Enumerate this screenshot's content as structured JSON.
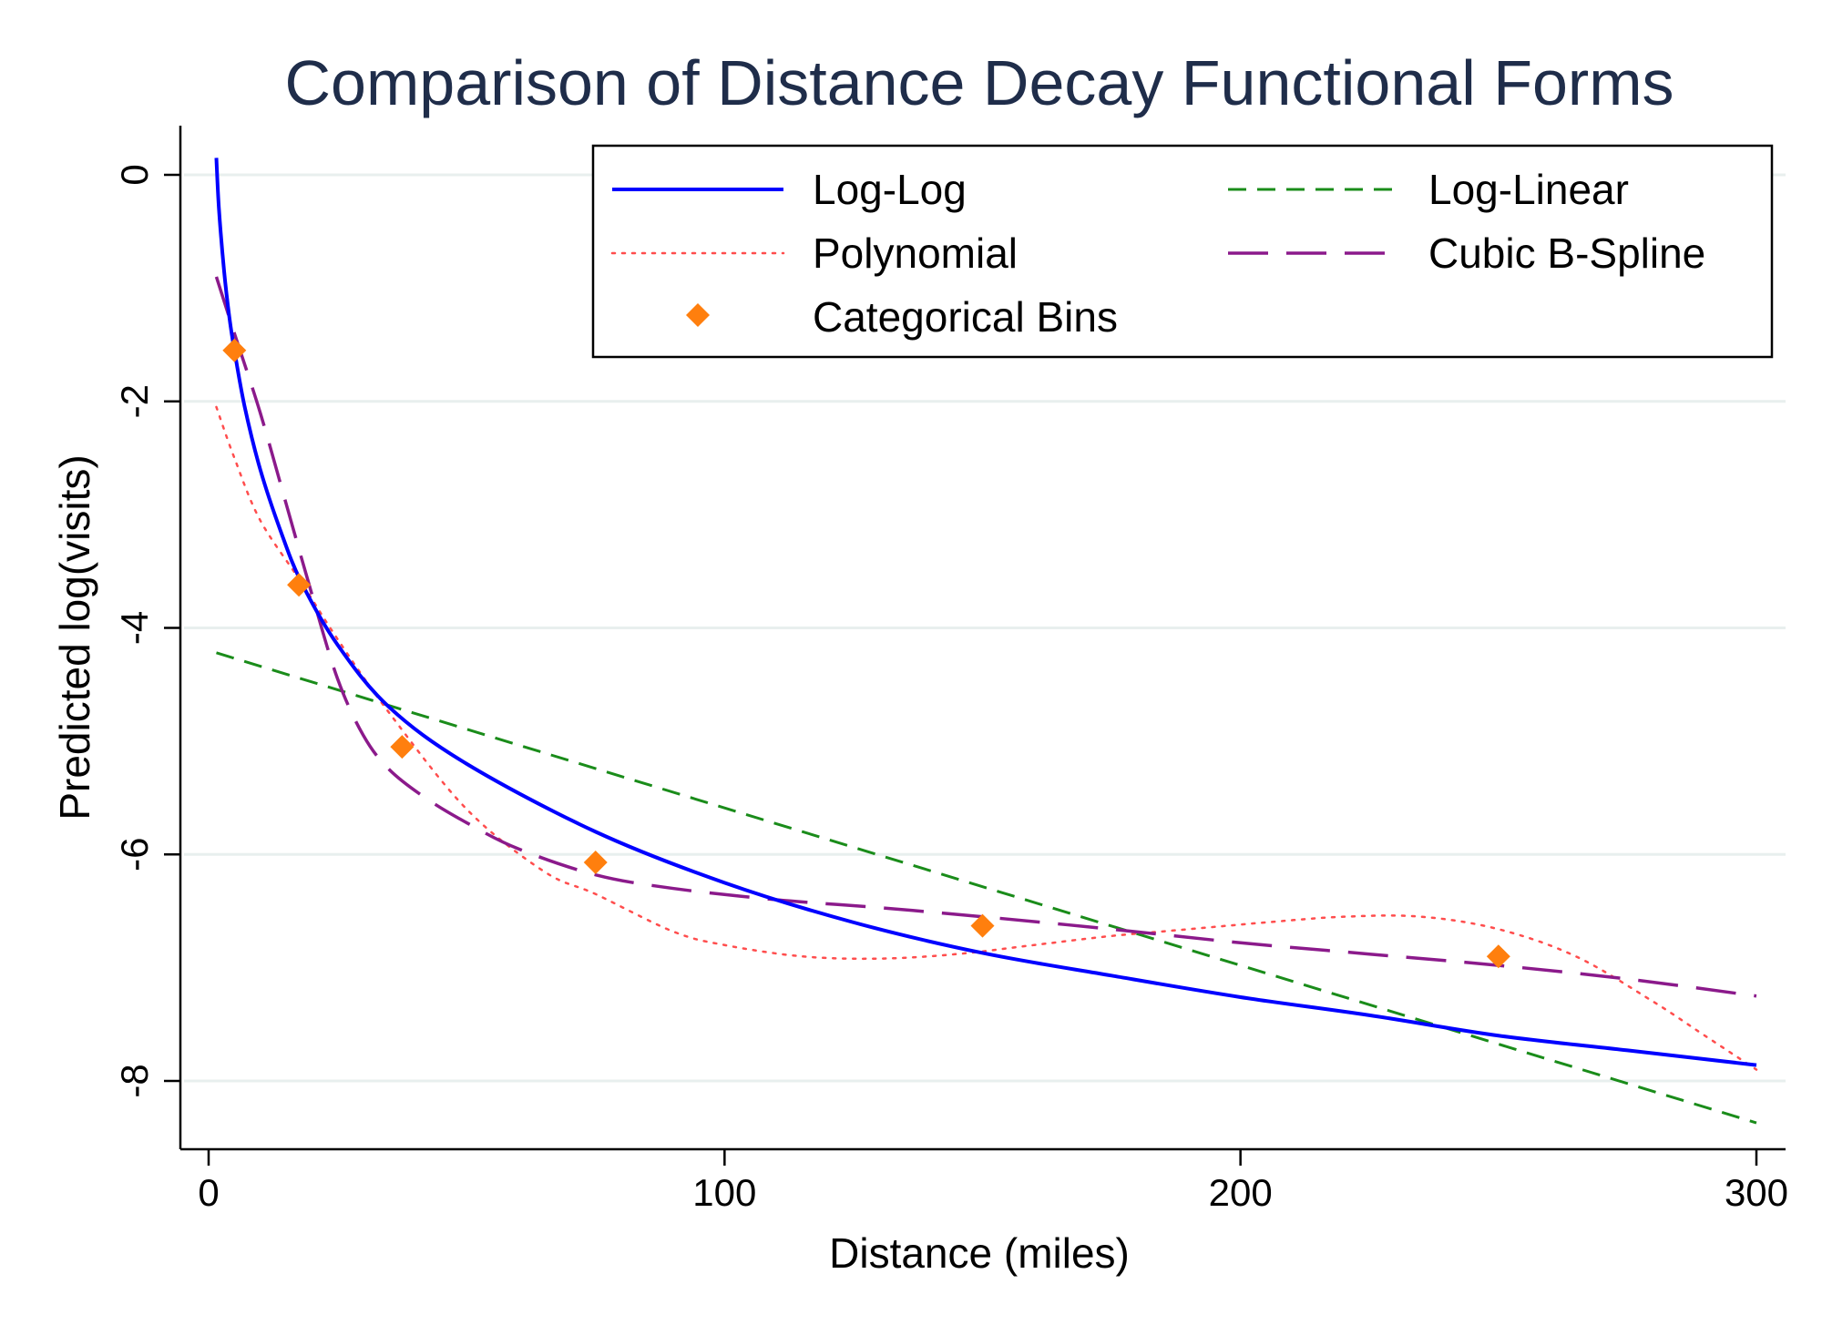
{
  "chart_data": {
    "type": "line",
    "title": "Comparison of Distance Decay Functional Forms",
    "xlabel": "Distance (miles)",
    "ylabel": "Predicted log(visits)",
    "xlim": [
      0,
      305
    ],
    "ylim": [
      -8.6,
      0.4
    ],
    "x_ticks": [
      0,
      100,
      200,
      300
    ],
    "x_tick_labels": [
      "0",
      "100",
      "200",
      "300"
    ],
    "y_ticks": [
      0,
      -2,
      -4,
      -6,
      -8
    ],
    "y_tick_labels": [
      "0",
      "-2",
      "-4",
      "-6",
      "-8"
    ],
    "grid": "horizontal",
    "legend": "top-right",
    "series": [
      {
        "name": "Log-Log",
        "kind": "line",
        "style": "solid",
        "color": "#0000ff",
        "points": [
          [
            1.5,
            0.15
          ],
          [
            2,
            -0.3
          ],
          [
            3,
            -0.85
          ],
          [
            4,
            -1.25
          ],
          [
            5,
            -1.55
          ],
          [
            7,
            -2.05
          ],
          [
            10,
            -2.6
          ],
          [
            14,
            -3.15
          ],
          [
            18,
            -3.6
          ],
          [
            25,
            -4.15
          ],
          [
            35,
            -4.7
          ],
          [
            50,
            -5.2
          ],
          [
            75,
            -5.8
          ],
          [
            100,
            -6.25
          ],
          [
            125,
            -6.6
          ],
          [
            150,
            -6.87
          ],
          [
            175,
            -7.07
          ],
          [
            200,
            -7.26
          ],
          [
            225,
            -7.42
          ],
          [
            250,
            -7.6
          ],
          [
            275,
            -7.73
          ],
          [
            300,
            -7.86
          ]
        ]
      },
      {
        "name": "Log-Linear",
        "kind": "line",
        "style": "dashed",
        "color": "#1a8c1a",
        "points": [
          [
            1.5,
            -4.22
          ],
          [
            300,
            -8.37
          ]
        ]
      },
      {
        "name": "Polynomial",
        "kind": "line",
        "style": "dotted",
        "color": "#ff4d4d",
        "points": [
          [
            1.5,
            -2.05
          ],
          [
            5,
            -2.5
          ],
          [
            10,
            -3.05
          ],
          [
            18,
            -3.6
          ],
          [
            25,
            -4.1
          ],
          [
            35,
            -4.75
          ],
          [
            50,
            -5.6
          ],
          [
            65,
            -6.15
          ],
          [
            75,
            -6.35
          ],
          [
            90,
            -6.68
          ],
          [
            100,
            -6.8
          ],
          [
            115,
            -6.9
          ],
          [
            130,
            -6.92
          ],
          [
            145,
            -6.88
          ],
          [
            160,
            -6.8
          ],
          [
            175,
            -6.72
          ],
          [
            190,
            -6.66
          ],
          [
            205,
            -6.6
          ],
          [
            220,
            -6.55
          ],
          [
            235,
            -6.55
          ],
          [
            250,
            -6.66
          ],
          [
            265,
            -6.9
          ],
          [
            280,
            -7.3
          ],
          [
            290,
            -7.6
          ],
          [
            300,
            -7.9
          ]
        ]
      },
      {
        "name": "Cubic B-Spline",
        "kind": "line",
        "style": "longdash",
        "color": "#8b1a8b",
        "points": [
          [
            1.5,
            -0.9
          ],
          [
            5,
            -1.4
          ],
          [
            10,
            -2.1
          ],
          [
            15,
            -2.9
          ],
          [
            20,
            -3.7
          ],
          [
            25,
            -4.45
          ],
          [
            30,
            -4.95
          ],
          [
            35,
            -5.25
          ],
          [
            42,
            -5.5
          ],
          [
            50,
            -5.72
          ],
          [
            60,
            -5.95
          ],
          [
            75,
            -6.18
          ],
          [
            90,
            -6.3
          ],
          [
            110,
            -6.4
          ],
          [
            130,
            -6.47
          ],
          [
            150,
            -6.55
          ],
          [
            175,
            -6.66
          ],
          [
            200,
            -6.78
          ],
          [
            225,
            -6.88
          ],
          [
            250,
            -6.98
          ],
          [
            275,
            -7.1
          ],
          [
            300,
            -7.25
          ]
        ]
      },
      {
        "name": "Categorical Bins",
        "kind": "scatter",
        "marker": "diamond",
        "color": "#ff7f0e",
        "points": [
          [
            5,
            -1.55
          ],
          [
            17.5,
            -3.62
          ],
          [
            37.5,
            -5.05
          ],
          [
            75,
            -6.07
          ],
          [
            150,
            -6.63
          ],
          [
            250,
            -6.9
          ]
        ]
      }
    ]
  }
}
